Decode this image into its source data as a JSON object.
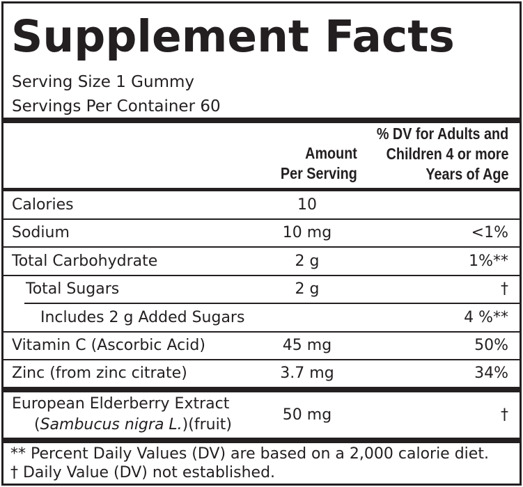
{
  "title": "Supplement Facts",
  "serving_size": "Serving Size 1 Gummy",
  "servings_per_container": "Servings Per Container 60",
  "headers": {
    "amount_line1": "Amount",
    "amount_line2": "Per Serving",
    "dv_line1": "% DV for Adults and",
    "dv_line2": "Children 4 or more",
    "dv_line3": "Years of Age"
  },
  "rows": [
    {
      "name": "Calories",
      "amount": "10",
      "dv": ""
    },
    {
      "name": "Sodium",
      "amount": "10 mg",
      "dv": "<1%"
    },
    {
      "name": "Total Carbohydrate",
      "amount": "2 g",
      "dv": "1%**"
    },
    {
      "name": "Total Sugars",
      "amount": "2 g",
      "dv": "†"
    },
    {
      "name": "Includes 2 g Added Sugars",
      "amount": "",
      "dv": "4 %**"
    },
    {
      "name": "Vitamin C (Ascorbic Acid)",
      "amount": "45 mg",
      "dv": "50%"
    },
    {
      "name": "Zinc (from zinc citrate)",
      "amount": "3.7 mg",
      "dv": "34%"
    }
  ],
  "elderberry": {
    "name_line1": "European Elderberry Extract",
    "latin": "Sambucus nigra L.",
    "part": "(fruit)",
    "amount": "50 mg",
    "dv": "†"
  },
  "footnotes": [
    "** Percent Daily Values (DV) are based on a 2,000 calorie diet.",
    "† Daily Value (DV) not established."
  ]
}
